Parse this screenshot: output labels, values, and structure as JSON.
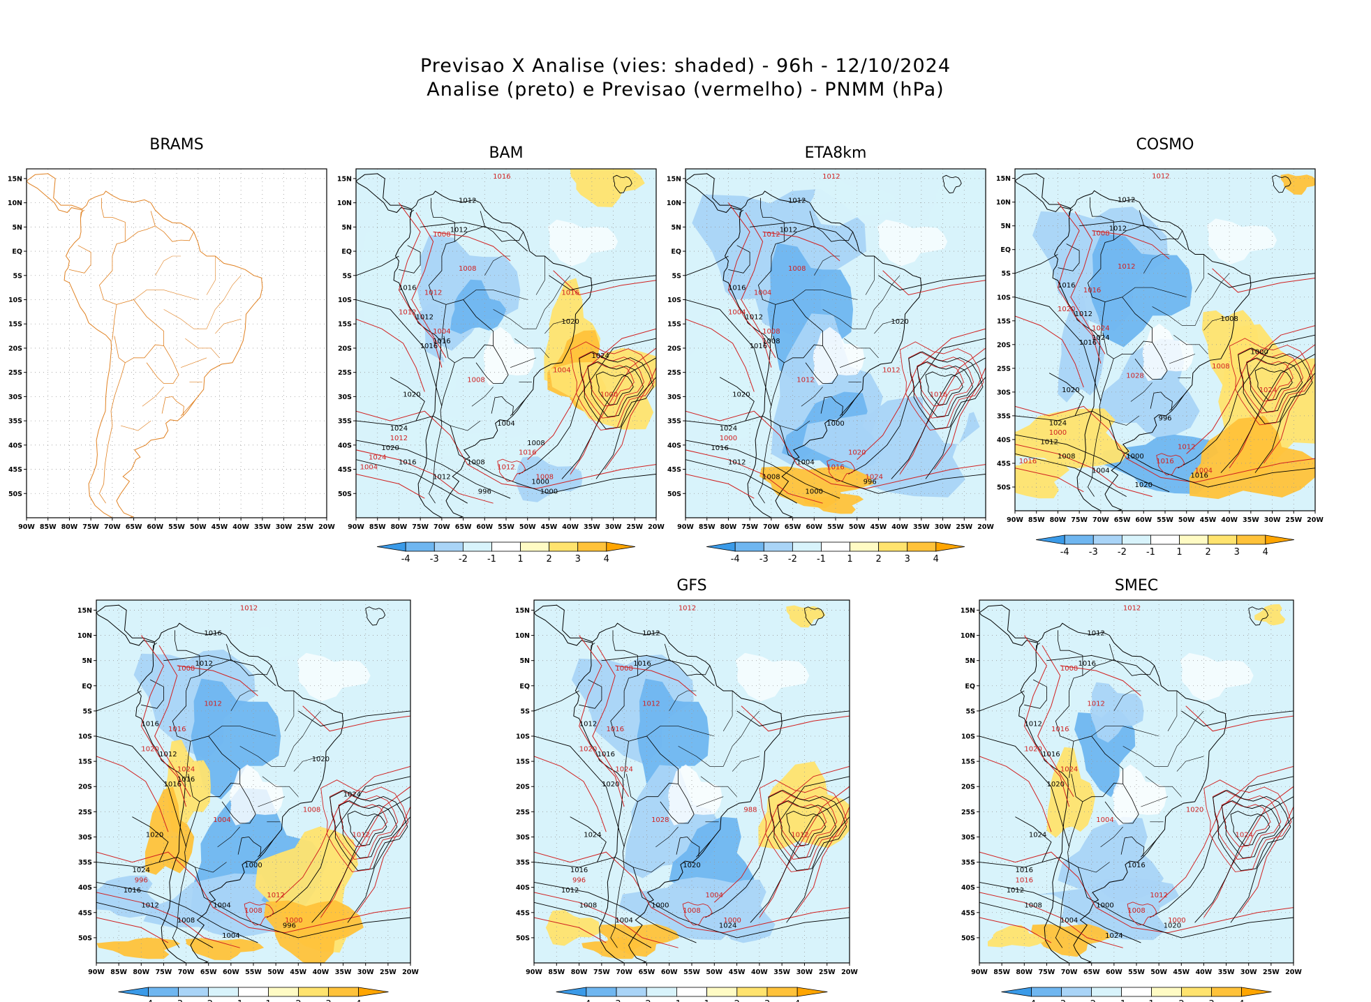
{
  "title": {
    "line1": "Previsao X Analise (vies: shaded) - 96h - 12/10/2024",
    "line2": "Analise (preto) e Previsao (vermelho) - PNMM (hPa)"
  },
  "axes": {
    "lon_labels": [
      "90W",
      "85W",
      "80W",
      "75W",
      "70W",
      "65W",
      "60W",
      "55W",
      "50W",
      "45W",
      "40W",
      "35W",
      "30W",
      "25W",
      "20W"
    ],
    "lat_labels": [
      "15N",
      "10N",
      "5N",
      "EQ",
      "5S",
      "10S",
      "15S",
      "20S",
      "25S",
      "30S",
      "35S",
      "40S",
      "45S",
      "50S"
    ]
  },
  "colorbar": {
    "ticks": [
      "-4",
      "-3",
      "-2",
      "-1",
      "1",
      "2",
      "3",
      "4"
    ],
    "colors": [
      "#3a9ae8",
      "#6fb6f0",
      "#a9d4f7",
      "#d8f3fb",
      "#ffffff",
      "#fffbc4",
      "#ffe36e",
      "#ffc23a",
      "#ffa500"
    ]
  },
  "colors": {
    "analysis_contour": "#000000",
    "forecast_contour": "#d02020",
    "brams_coast": "#e08020",
    "grid": "#9a9a9a"
  },
  "panels": [
    {
      "id": "brams",
      "title": "BRAMS",
      "has_shading": false,
      "has_colorbar": false,
      "black_labels": [],
      "red_labels": []
    },
    {
      "id": "bam",
      "title": "BAM",
      "has_shading": true,
      "has_colorbar": true,
      "black_labels": [
        "1012",
        "1012",
        "1016",
        "1012",
        "1016",
        "1020",
        "1024",
        "1020",
        "1016",
        "1012",
        "1008",
        "1004",
        "1000",
        "996",
        "1016",
        "1020",
        "1024",
        "1008",
        "1000"
      ],
      "red_labels": [
        "1016",
        "1008",
        "1008",
        "1012",
        "1012",
        "1004",
        "1008",
        "1012",
        "1016",
        "1008",
        "1012",
        "1004",
        "1000",
        "1004",
        "1024",
        "1016"
      ]
    },
    {
      "id": "eta8km",
      "title": "ETA8km",
      "has_shading": true,
      "has_colorbar": true,
      "black_labels": [
        "1012",
        "1012",
        "1016",
        "1012",
        "1016",
        "1020",
        "1024",
        "1016",
        "1012",
        "1008",
        "1004",
        "1000",
        "996",
        "1000",
        "1008",
        "1020"
      ],
      "red_labels": [
        "1012",
        "1012",
        "1008",
        "1004",
        "1004",
        "1008",
        "1012",
        "1016",
        "1020",
        "1024",
        "1000",
        "1012",
        "1016"
      ]
    },
    {
      "id": "cosmo",
      "title": "COSMO",
      "has_shading": true,
      "has_colorbar": true,
      "black_labels": [
        "1012",
        "1012",
        "1016",
        "1012",
        "1016",
        "1020",
        "1024",
        "1012",
        "1008",
        "1004",
        "1000",
        "996",
        "1016",
        "1020",
        "1024",
        "1008",
        "1000"
      ],
      "red_labels": [
        "1012",
        "1008",
        "1012",
        "1016",
        "1020",
        "1024",
        "1028",
        "1016",
        "1012",
        "1004",
        "1000",
        "1008",
        "1024",
        "1016"
      ]
    },
    {
      "id": "smna",
      "title": "",
      "has_shading": true,
      "has_colorbar": true,
      "black_labels": [
        "1016",
        "1012",
        "1016",
        "1012",
        "1016",
        "1020",
        "1024",
        "1016",
        "1012",
        "1008",
        "1004",
        "1000",
        "996",
        "1004",
        "1016",
        "1020",
        "1024"
      ],
      "red_labels": [
        "1012",
        "1008",
        "1012",
        "1016",
        "1020",
        "1024",
        "1004",
        "1008",
        "1012",
        "1000",
        "996",
        "1008",
        "1012"
      ]
    },
    {
      "id": "gfs",
      "title": "GFS",
      "has_shading": true,
      "has_colorbar": true,
      "black_labels": [
        "1012",
        "1016",
        "1012",
        "1016",
        "1020",
        "1024",
        "1016",
        "1012",
        "1008",
        "1004",
        "1000",
        "1020",
        "1024"
      ],
      "red_labels": [
        "1012",
        "1008",
        "1012",
        "1016",
        "1020",
        "1024",
        "1028",
        "1008",
        "1004",
        "1000",
        "996",
        "988",
        "1012"
      ]
    },
    {
      "id": "smec",
      "title": "SMEC",
      "has_shading": true,
      "has_colorbar": true,
      "black_labels": [
        "1012",
        "1016",
        "1012",
        "1016",
        "1020",
        "1024",
        "1016",
        "1012",
        "1008",
        "1004",
        "1000",
        "1016",
        "1020",
        "1024"
      ],
      "red_labels": [
        "1012",
        "1008",
        "1012",
        "1016",
        "1020",
        "1024",
        "1004",
        "1008",
        "1012",
        "1000",
        "1016",
        "1020",
        "1024"
      ]
    }
  ]
}
